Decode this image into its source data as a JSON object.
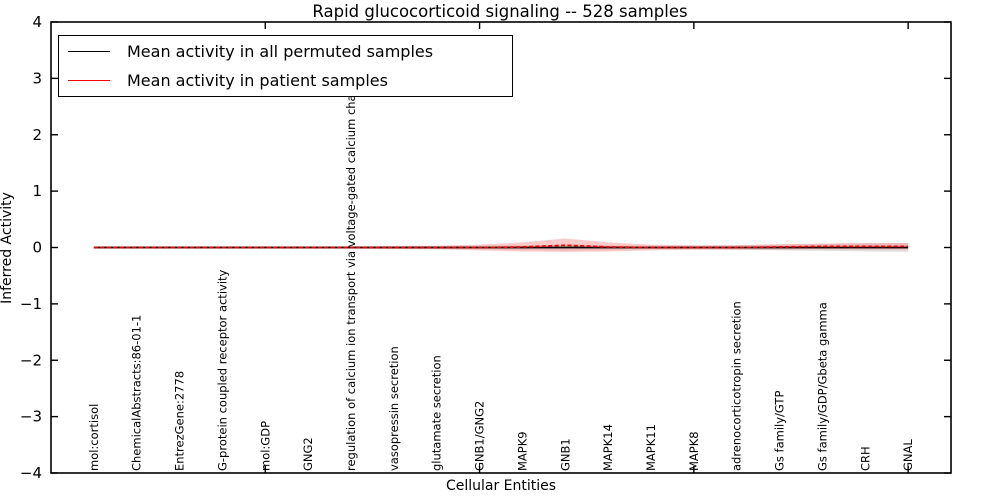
{
  "title": "Rapid glucocorticoid signaling -- 528 samples",
  "chart_data": {
    "type": "line",
    "title": "Rapid glucocorticoid signaling -- 528 samples",
    "xlabel": "Cellular Entities",
    "ylabel": "Inferred Activity",
    "ylim": [
      -4,
      4
    ],
    "x_range": [
      0,
      21
    ],
    "x_tick_values": [
      5,
      10,
      15,
      20
    ],
    "yticks": [
      {
        "value": 4,
        "label": "4"
      },
      {
        "value": 3,
        "label": "3"
      },
      {
        "value": 2,
        "label": "2"
      },
      {
        "value": 1,
        "label": "1"
      },
      {
        "value": 0,
        "label": "0"
      },
      {
        "value": -1,
        "label": "−1"
      },
      {
        "value": -2,
        "label": "−2"
      },
      {
        "value": -3,
        "label": "−3"
      },
      {
        "value": -4,
        "label": "−4"
      }
    ],
    "grid": false,
    "legend_position": "upper left",
    "categories": [
      "mol:cortisol",
      "ChemicalAbstracts:86-01-1",
      "EntrezGene:2778",
      "G-protein coupled receptor activity",
      "mol:GDP",
      "GNG2",
      "regulation of calcium ion transport via voltage-gated calcium channel",
      "vasopressin secretion",
      "glutamate secretion",
      "GNB1/GNG2",
      "MAPK9",
      "GNB1",
      "MAPK14",
      "MAPK11",
      "MAPK8",
      "adrenocorticotropin secretion",
      "Gs family/GTP",
      "Gs family/GDP/Gbeta gamma",
      "CRH",
      "GNAL"
    ],
    "series": [
      {
        "name": "Mean activity in all permuted samples",
        "color": "#000000",
        "line_style": "solid",
        "values": [
          0,
          0,
          0,
          0,
          0,
          0,
          0,
          0,
          0,
          0,
          0,
          0,
          0,
          0,
          0,
          0,
          0,
          0,
          0,
          0
        ],
        "band_halfwidth": [
          0.02,
          0.02,
          0.02,
          0.02,
          0.02,
          0.02,
          0.02,
          0.02,
          0.03,
          0.03,
          0.04,
          0.05,
          0.04,
          0.03,
          0.03,
          0.04,
          0.05,
          0.06,
          0.07,
          0.08
        ],
        "band_color": "#c8c8c8"
      },
      {
        "name": "Mean activity in patient samples",
        "color": "#ff0000",
        "line_style": "dashed-overlay",
        "values": [
          0,
          0,
          0,
          0,
          0,
          0,
          0,
          0,
          0,
          0,
          0.01,
          0.04,
          0.01,
          0,
          0,
          0,
          0.01,
          0.02,
          0.02,
          0.02
        ],
        "band_halfwidth": [
          0.02,
          0.02,
          0.02,
          0.02,
          0.02,
          0.02,
          0.02,
          0.03,
          0.03,
          0.05,
          0.08,
          0.12,
          0.08,
          0.05,
          0.04,
          0.04,
          0.05,
          0.05,
          0.06,
          0.06
        ],
        "band_color": "#ff6666"
      }
    ]
  }
}
